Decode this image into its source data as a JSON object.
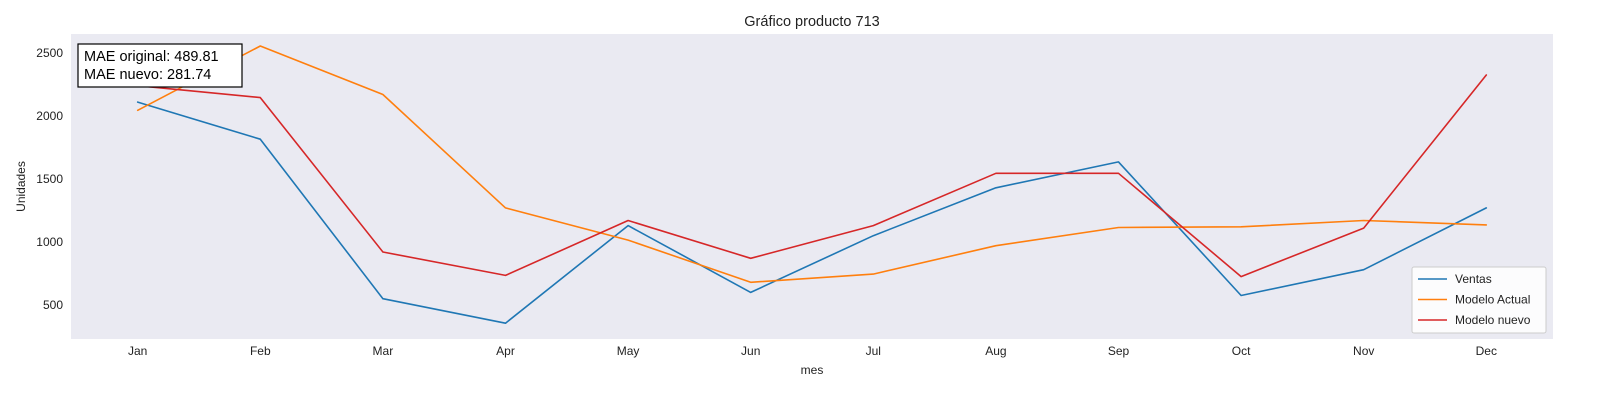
{
  "chart_data": {
    "type": "line",
    "title": "Gráfico producto 713",
    "xlabel": "mes",
    "ylabel": "Unidades",
    "categories": [
      "Jan",
      "Feb",
      "Mar",
      "Apr",
      "May",
      "Jun",
      "Jul",
      "Aug",
      "Sep",
      "Oct",
      "Nov",
      "Dec"
    ],
    "yticks": [
      500,
      1000,
      1500,
      2000,
      2500
    ],
    "ylim": [
      230,
      2650
    ],
    "grid": false,
    "legend_position": "bottom-right",
    "plot_background": "#eaeaf2",
    "annotation": {
      "lines": [
        "MAE original: 489.81",
        "MAE nuevo: 281.74"
      ],
      "position": "top-left"
    },
    "series": [
      {
        "name": "Ventas",
        "color": "#1f77b4",
        "values": [
          2110,
          1815,
          550,
          355,
          1130,
          600,
          1050,
          1430,
          1635,
          575,
          780,
          1270
        ]
      },
      {
        "name": "Modelo Actual",
        "color": "#ff7f0e",
        "values": [
          2045,
          2555,
          2170,
          1270,
          1015,
          680,
          745,
          970,
          1115,
          1120,
          1170,
          1135
        ]
      },
      {
        "name": "Modelo nuevo",
        "color": "#d62728",
        "values": [
          2240,
          2145,
          920,
          735,
          1170,
          870,
          1130,
          1545,
          1545,
          725,
          1110,
          2325
        ]
      }
    ]
  }
}
